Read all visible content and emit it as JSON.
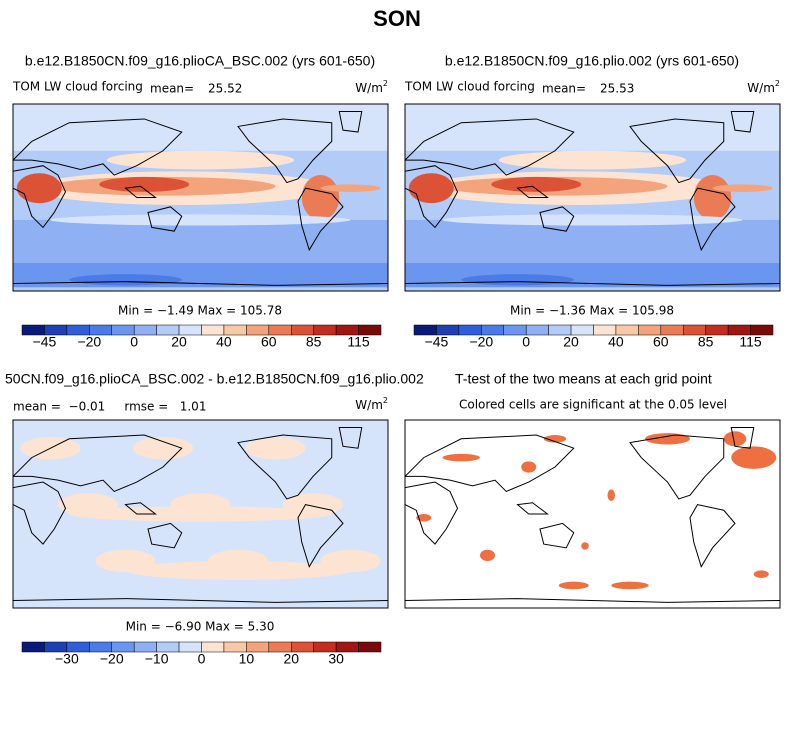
{
  "title": "SON",
  "panels": [
    {
      "title": "b.e12.B1850CN.f09_g16.plioCA_BSC.002 (yrs 601-650)",
      "variable": "TOM LW cloud forcing",
      "mean_label": "mean=",
      "mean": "25.52",
      "units": "W/m",
      "units_sup": "2",
      "min_max": "Min =  −1.49 Max = 105.78",
      "colorbar_labels": [
        "−45",
        "−20",
        "0",
        "20",
        "40",
        "60",
        "85",
        "115"
      ]
    },
    {
      "title": "b.e12.B1850CN.f09_g16.plio.002 (yrs 601-650)",
      "variable": "TOM LW cloud forcing",
      "mean_label": "mean=",
      "mean": "25.53",
      "units": "W/m",
      "units_sup": "2",
      "min_max": "Min =  −1.36 Max = 105.98",
      "colorbar_labels": [
        "−45",
        "−20",
        "0",
        "20",
        "40",
        "60",
        "85",
        "115"
      ]
    },
    {
      "title": "50CN.f09_g16.plioCA_BSC.002 - b.e12.B1850CN.f09_g16.plio.002",
      "stats": "mean =  −0.01     rmse =   1.01",
      "units": "W/m",
      "units_sup": "2",
      "min_max": "Min =  −6.90 Max =  5.30",
      "colorbar_labels": [
        "−30",
        "−20",
        "−10",
        "0",
        "10",
        "20",
        "30"
      ]
    },
    {
      "title": "T-test of the two means at each grid point",
      "subtitle": "Colored cells are significant at the 0.05 level"
    }
  ],
  "colorbar_colors": [
    "#0a1a7a",
    "#1f3fb5",
    "#2f5fd8",
    "#4a7be8",
    "#6b96ef",
    "#8fb0f3",
    "#b3cbf7",
    "#d6e4fb",
    "#fde4d2",
    "#f9c8a6",
    "#f3a47c",
    "#ea7b55",
    "#dc5236",
    "#c22d1f",
    "#9f1612",
    "#7a0a08"
  ]
}
